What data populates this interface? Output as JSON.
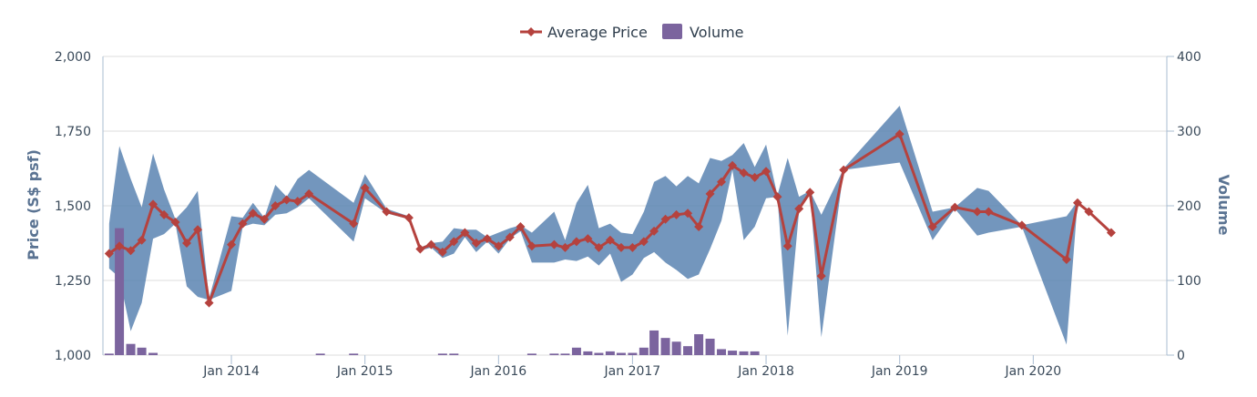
{
  "chart_data": {
    "type": "line",
    "title": "",
    "legend": {
      "placement": "top-center",
      "items": [
        "Average Price",
        "Volume"
      ]
    },
    "colors": {
      "price": "#b5423e",
      "range": "#5b84b1",
      "volume": "#7b649e",
      "axis": "#a9bcd2",
      "grid": "#dddddd"
    },
    "y_left": {
      "label": "Price (S$ psf)",
      "min": 1000,
      "max": 2000,
      "ticks": [
        1000,
        1250,
        1500,
        1750,
        2000
      ],
      "tick_labels": [
        "1,000",
        "1,250",
        "1,500",
        "1,750",
        "2,000"
      ]
    },
    "y_right": {
      "label": "Volume",
      "min": 0,
      "max": 400,
      "ticks": [
        0,
        100,
        200,
        300,
        400
      ],
      "tick_labels": [
        "0",
        "100",
        "200",
        "300",
        "400"
      ]
    },
    "x_axis": {
      "min": "2013-01-15",
      "max": "2020-12-31",
      "ticks": [
        "2014-01-01",
        "2015-01-01",
        "2016-01-01",
        "2017-01-01",
        "2018-01-01",
        "2019-01-01",
        "2020-01-01"
      ],
      "tick_labels": [
        "Jan 2014",
        "Jan 2015",
        "Jan 2016",
        "Jan 2017",
        "Jan 2018",
        "Jan 2019",
        "Jan 2020"
      ]
    },
    "series": [
      {
        "name": "Average Price",
        "kind": "line",
        "data": [
          [
            "2013-02-01",
            1340
          ],
          [
            "2013-03-01",
            1365
          ],
          [
            "2013-04-01",
            1350
          ],
          [
            "2013-05-01",
            1385
          ],
          [
            "2013-06-01",
            1505
          ],
          [
            "2013-07-01",
            1470
          ],
          [
            "2013-08-01",
            1445
          ],
          [
            "2013-09-01",
            1375
          ],
          [
            "2013-10-01",
            1420
          ],
          [
            "2013-11-01",
            1175
          ],
          [
            "2014-01-01",
            1370
          ],
          [
            "2014-02-01",
            1440
          ],
          [
            "2014-03-01",
            1475
          ],
          [
            "2014-04-01",
            1455
          ],
          [
            "2014-05-01",
            1500
          ],
          [
            "2014-06-01",
            1520
          ],
          [
            "2014-07-01",
            1515
          ],
          [
            "2014-08-01",
            1540
          ],
          [
            "2014-12-01",
            1440
          ],
          [
            "2015-01-01",
            1560
          ],
          [
            "2015-03-01",
            1480
          ],
          [
            "2015-05-01",
            1460
          ],
          [
            "2015-06-01",
            1355
          ],
          [
            "2015-07-01",
            1370
          ],
          [
            "2015-08-01",
            1345
          ],
          [
            "2015-09-01",
            1380
          ],
          [
            "2015-10-01",
            1410
          ],
          [
            "2015-11-01",
            1375
          ],
          [
            "2015-12-01",
            1390
          ],
          [
            "2016-01-01",
            1365
          ],
          [
            "2016-02-01",
            1395
          ],
          [
            "2016-03-01",
            1430
          ],
          [
            "2016-04-01",
            1365
          ],
          [
            "2016-06-01",
            1370
          ],
          [
            "2016-07-01",
            1360
          ],
          [
            "2016-08-01",
            1380
          ],
          [
            "2016-09-01",
            1390
          ],
          [
            "2016-10-01",
            1360
          ],
          [
            "2016-11-01",
            1385
          ],
          [
            "2016-12-01",
            1360
          ],
          [
            "2017-01-01",
            1360
          ],
          [
            "2017-02-01",
            1380
          ],
          [
            "2017-03-01",
            1415
          ],
          [
            "2017-04-01",
            1455
          ],
          [
            "2017-05-01",
            1470
          ],
          [
            "2017-06-01",
            1475
          ],
          [
            "2017-07-01",
            1430
          ],
          [
            "2017-08-01",
            1540
          ],
          [
            "2017-09-01",
            1580
          ],
          [
            "2017-10-01",
            1635
          ],
          [
            "2017-11-01",
            1610
          ],
          [
            "2017-12-01",
            1595
          ],
          [
            "2018-01-01",
            1615
          ],
          [
            "2018-02-01",
            1530
          ],
          [
            "2018-03-01",
            1365
          ],
          [
            "2018-04-01",
            1490
          ],
          [
            "2018-05-01",
            1545
          ],
          [
            "2018-06-01",
            1265
          ],
          [
            "2018-08-01",
            1620
          ],
          [
            "2019-01-01",
            1740
          ],
          [
            "2019-04-01",
            1430
          ],
          [
            "2019-06-01",
            1495
          ],
          [
            "2019-08-01",
            1480
          ],
          [
            "2019-09-01",
            1480
          ],
          [
            "2019-12-01",
            1435
          ],
          [
            "2020-04-01",
            1320
          ],
          [
            "2020-05-01",
            1510
          ],
          [
            "2020-06-01",
            1480
          ],
          [
            "2020-08-01",
            1410
          ]
        ]
      },
      {
        "name": "Range",
        "kind": "arearange",
        "data": [
          [
            "2013-02-01",
            1290,
            1440
          ],
          [
            "2013-03-01",
            1260,
            1700
          ],
          [
            "2013-04-01",
            1080,
            1590
          ],
          [
            "2013-05-01",
            1175,
            1495
          ],
          [
            "2013-06-01",
            1390,
            1675
          ],
          [
            "2013-07-01",
            1405,
            1555
          ],
          [
            "2013-08-01",
            1440,
            1455
          ],
          [
            "2013-09-01",
            1230,
            1495
          ],
          [
            "2013-10-01",
            1195,
            1550
          ],
          [
            "2013-11-01",
            1185,
            1190
          ],
          [
            "2014-01-01",
            1215,
            1465
          ],
          [
            "2014-02-01",
            1430,
            1460
          ],
          [
            "2014-03-01",
            1440,
            1510
          ],
          [
            "2014-04-01",
            1435,
            1460
          ],
          [
            "2014-05-01",
            1470,
            1570
          ],
          [
            "2014-06-01",
            1475,
            1530
          ],
          [
            "2014-07-01",
            1495,
            1590
          ],
          [
            "2014-08-01",
            1525,
            1620
          ],
          [
            "2014-12-01",
            1380,
            1510
          ],
          [
            "2015-01-01",
            1525,
            1605
          ],
          [
            "2015-03-01",
            1475,
            1490
          ],
          [
            "2015-05-01",
            1455,
            1465
          ],
          [
            "2015-06-01",
            1350,
            1360
          ],
          [
            "2015-07-01",
            1360,
            1375
          ],
          [
            "2015-08-01",
            1325,
            1380
          ],
          [
            "2015-09-01",
            1340,
            1425
          ],
          [
            "2015-10-01",
            1395,
            1420
          ],
          [
            "2015-11-01",
            1345,
            1420
          ],
          [
            "2015-12-01",
            1380,
            1395
          ],
          [
            "2016-01-01",
            1340,
            1410
          ],
          [
            "2016-02-01",
            1390,
            1425
          ],
          [
            "2016-03-01",
            1415,
            1435
          ],
          [
            "2016-04-01",
            1310,
            1410
          ],
          [
            "2016-06-01",
            1310,
            1480
          ],
          [
            "2016-07-01",
            1320,
            1385
          ],
          [
            "2016-08-01",
            1315,
            1510
          ],
          [
            "2016-09-01",
            1330,
            1570
          ],
          [
            "2016-10-01",
            1300,
            1425
          ],
          [
            "2016-11-01",
            1340,
            1440
          ],
          [
            "2016-12-01",
            1245,
            1410
          ],
          [
            "2017-01-01",
            1270,
            1405
          ],
          [
            "2017-02-01",
            1325,
            1480
          ],
          [
            "2017-03-01",
            1345,
            1580
          ],
          [
            "2017-04-01",
            1310,
            1600
          ],
          [
            "2017-05-01",
            1285,
            1565
          ],
          [
            "2017-06-01",
            1255,
            1600
          ],
          [
            "2017-07-01",
            1270,
            1575
          ],
          [
            "2017-08-01",
            1355,
            1660
          ],
          [
            "2017-09-01",
            1450,
            1650
          ],
          [
            "2017-10-01",
            1620,
            1670
          ],
          [
            "2017-11-01",
            1385,
            1710
          ],
          [
            "2017-12-01",
            1430,
            1630
          ],
          [
            "2018-01-01",
            1525,
            1705
          ],
          [
            "2018-02-01",
            1530,
            1535
          ],
          [
            "2018-03-01",
            1065,
            1660
          ],
          [
            "2018-04-01",
            1480,
            1530
          ],
          [
            "2018-05-01",
            1545,
            1550
          ],
          [
            "2018-06-01",
            1060,
            1470
          ],
          [
            "2018-08-01",
            1620,
            1625
          ],
          [
            "2019-01-01",
            1645,
            1835
          ],
          [
            "2019-04-01",
            1385,
            1480
          ],
          [
            "2019-06-01",
            1490,
            1495
          ],
          [
            "2019-08-01",
            1400,
            1560
          ],
          [
            "2019-09-01",
            1410,
            1550
          ],
          [
            "2019-12-01",
            1430,
            1435
          ],
          [
            "2020-04-01",
            1035,
            1465
          ],
          [
            "2020-05-01",
            1510,
            1515
          ],
          [
            "2020-06-01",
            1480,
            1485
          ],
          [
            "2020-08-01",
            1410,
            1412
          ]
        ]
      },
      {
        "name": "Volume",
        "kind": "column",
        "axis": "right",
        "data": [
          [
            "2013-02-01",
            2
          ],
          [
            "2013-03-01",
            170
          ],
          [
            "2013-04-01",
            15
          ],
          [
            "2013-05-01",
            10
          ],
          [
            "2013-06-01",
            3
          ],
          [
            "2014-09-01",
            2
          ],
          [
            "2014-12-01",
            2
          ],
          [
            "2015-08-01",
            2
          ],
          [
            "2015-09-01",
            2
          ],
          [
            "2016-04-01",
            2
          ],
          [
            "2016-06-01",
            2
          ],
          [
            "2016-07-01",
            2
          ],
          [
            "2016-08-01",
            10
          ],
          [
            "2016-09-01",
            5
          ],
          [
            "2016-10-01",
            3
          ],
          [
            "2016-11-01",
            5
          ],
          [
            "2016-12-01",
            3
          ],
          [
            "2017-01-01",
            3
          ],
          [
            "2017-02-01",
            10
          ],
          [
            "2017-03-01",
            33
          ],
          [
            "2017-04-01",
            23
          ],
          [
            "2017-05-01",
            18
          ],
          [
            "2017-06-01",
            12
          ],
          [
            "2017-07-01",
            28
          ],
          [
            "2017-08-01",
            22
          ],
          [
            "2017-09-01",
            8
          ],
          [
            "2017-10-01",
            6
          ],
          [
            "2017-11-01",
            5
          ],
          [
            "2017-12-01",
            5
          ]
        ]
      }
    ]
  }
}
